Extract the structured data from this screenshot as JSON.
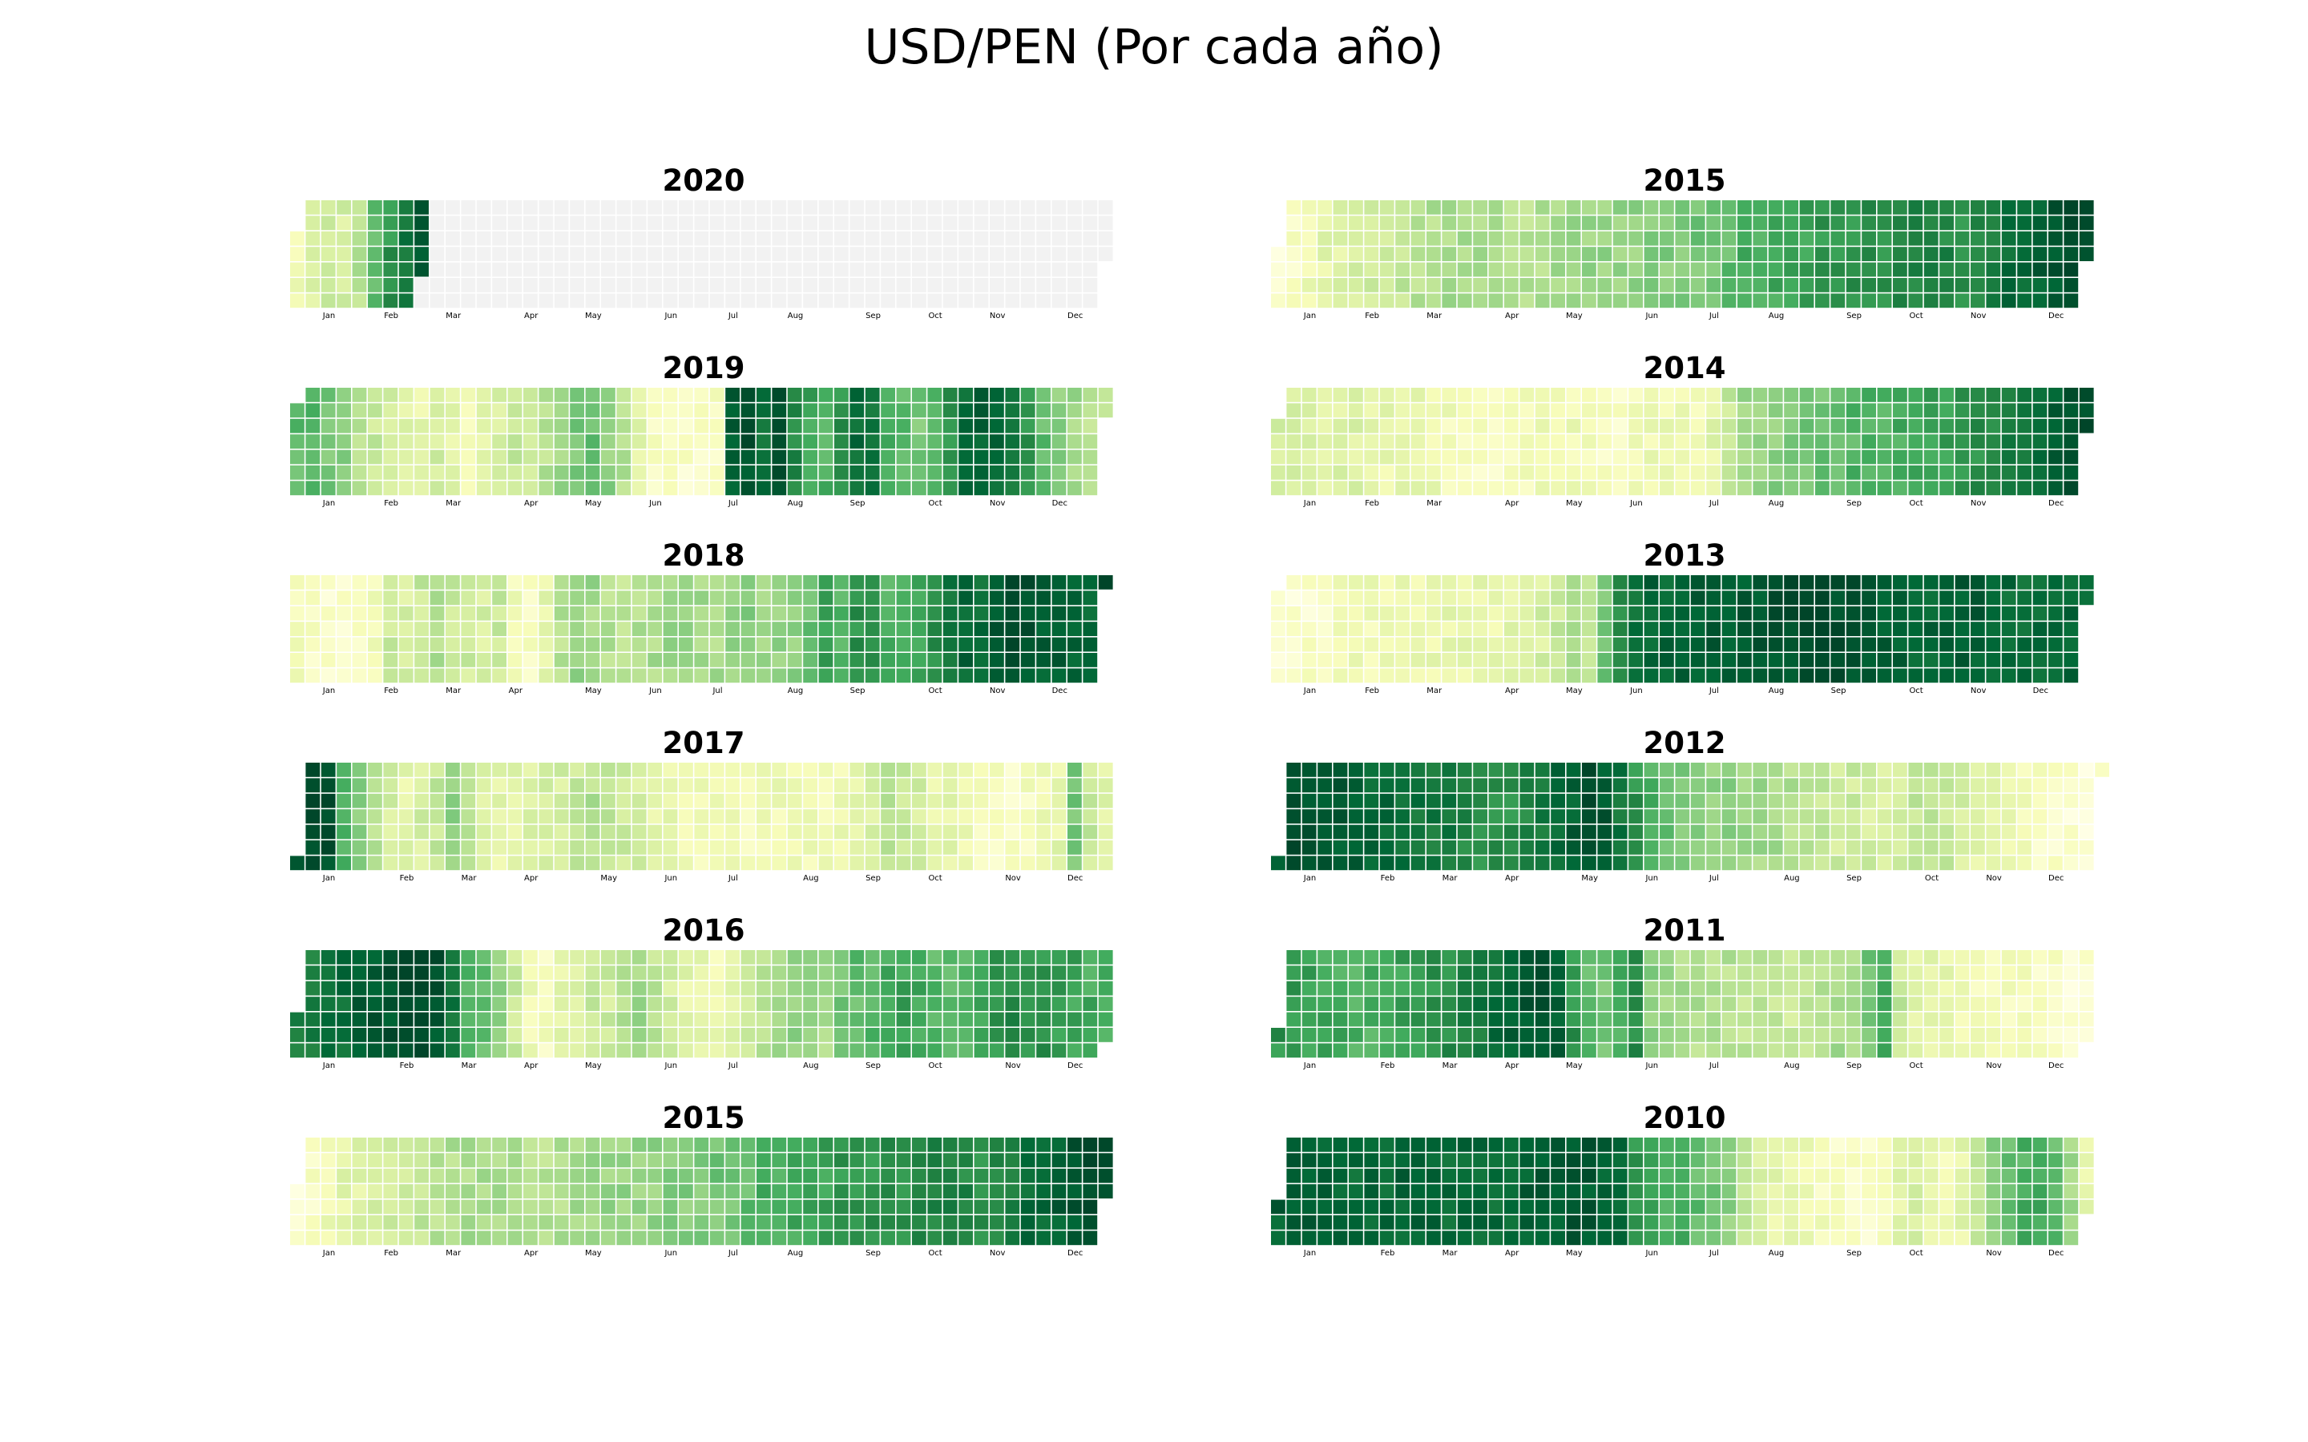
{
  "title": "USD/PEN (Por cada año)",
  "chart_data": {
    "type": "heatmap",
    "layout": "calendar",
    "colormap": "YlGn",
    "no_data_color": "#f2f2f2",
    "month_labels": [
      "Jan",
      "Feb",
      "Mar",
      "Apr",
      "May",
      "Jun",
      "Jul",
      "Aug",
      "Sep",
      "Oct",
      "Nov",
      "Dec"
    ],
    "value_scale": "relative daily USD/PEN level within each year, 0 = lowest (light yellow), 1 = highest (dark green)",
    "panels": [
      {
        "year": "2020",
        "column": "left",
        "end_date": "2020-02-28",
        "weekly_levels": [
          0.15,
          0.25,
          0.3,
          0.25,
          0.35,
          0.55,
          0.7,
          0.8,
          0.95
        ]
      },
      {
        "year": "2015",
        "column": "right",
        "weekly_levels": [
          0.05,
          0.1,
          0.15,
          0.2,
          0.22,
          0.25,
          0.27,
          0.3,
          0.32,
          0.34,
          0.36,
          0.38,
          0.38,
          0.38,
          0.36,
          0.35,
          0.35,
          0.36,
          0.38,
          0.4,
          0.42,
          0.42,
          0.43,
          0.44,
          0.45,
          0.46,
          0.48,
          0.5,
          0.5,
          0.55,
          0.6,
          0.62,
          0.63,
          0.64,
          0.66,
          0.68,
          0.7,
          0.7,
          0.72,
          0.72,
          0.74,
          0.76,
          0.78,
          0.75,
          0.72,
          0.74,
          0.8,
          0.85,
          0.88,
          0.9,
          0.93,
          0.97,
          0.99
        ]
      },
      {
        "year": "2019",
        "column": "left",
        "weekly_levels": [
          0.55,
          0.6,
          0.5,
          0.45,
          0.35,
          0.3,
          0.25,
          0.2,
          0.2,
          0.25,
          0.2,
          0.15,
          0.2,
          0.25,
          0.3,
          0.25,
          0.35,
          0.4,
          0.5,
          0.55,
          0.45,
          0.35,
          0.2,
          0.1,
          0.08,
          0.08,
          0.08,
          0.1,
          0.9,
          0.95,
          0.85,
          0.98,
          0.75,
          0.65,
          0.6,
          0.7,
          0.85,
          0.8,
          0.6,
          0.55,
          0.5,
          0.55,
          0.7,
          0.85,
          0.9,
          0.88,
          0.8,
          0.7,
          0.55,
          0.45,
          0.4,
          0.35,
          0.3
        ]
      },
      {
        "year": "2014",
        "column": "right",
        "weekly_levels": [
          0.25,
          0.25,
          0.22,
          0.22,
          0.22,
          0.22,
          0.2,
          0.18,
          0.18,
          0.18,
          0.16,
          0.14,
          0.12,
          0.1,
          0.08,
          0.1,
          0.12,
          0.15,
          0.16,
          0.15,
          0.12,
          0.1,
          0.1,
          0.12,
          0.15,
          0.16,
          0.15,
          0.14,
          0.2,
          0.3,
          0.4,
          0.42,
          0.45,
          0.48,
          0.5,
          0.52,
          0.55,
          0.58,
          0.6,
          0.6,
          0.62,
          0.63,
          0.65,
          0.66,
          0.7,
          0.72,
          0.75,
          0.78,
          0.8,
          0.85,
          0.9,
          0.94,
          0.97
        ]
      },
      {
        "year": "2018",
        "column": "left",
        "weekly_levels": [
          0.12,
          0.1,
          0.08,
          0.08,
          0.1,
          0.15,
          0.3,
          0.25,
          0.3,
          0.35,
          0.3,
          0.28,
          0.25,
          0.3,
          0.15,
          0.12,
          0.2,
          0.35,
          0.45,
          0.4,
          0.35,
          0.32,
          0.35,
          0.38,
          0.4,
          0.42,
          0.4,
          0.38,
          0.42,
          0.45,
          0.4,
          0.42,
          0.45,
          0.55,
          0.65,
          0.6,
          0.7,
          0.72,
          0.6,
          0.6,
          0.65,
          0.72,
          0.8,
          0.88,
          0.85,
          0.92,
          0.96,
          0.95,
          0.9,
          0.92,
          0.9,
          0.88,
          0.99
        ]
      },
      {
        "year": "2013",
        "column": "right",
        "weekly_levels": [
          0.05,
          0.06,
          0.08,
          0.1,
          0.12,
          0.14,
          0.15,
          0.14,
          0.15,
          0.17,
          0.18,
          0.18,
          0.18,
          0.18,
          0.18,
          0.2,
          0.22,
          0.25,
          0.3,
          0.35,
          0.3,
          0.5,
          0.72,
          0.85,
          0.88,
          0.88,
          0.9,
          0.92,
          0.92,
          0.9,
          0.92,
          0.93,
          0.95,
          0.96,
          0.97,
          0.98,
          0.98,
          0.95,
          0.92,
          0.9,
          0.9,
          0.88,
          0.88,
          0.9,
          0.92,
          0.9,
          0.88,
          0.86,
          0.85,
          0.86,
          0.87,
          0.88,
          0.89
        ]
      },
      {
        "year": "2017",
        "column": "left",
        "weekly_levels": [
          0.99,
          0.98,
          0.95,
          0.6,
          0.45,
          0.35,
          0.25,
          0.2,
          0.25,
          0.3,
          0.45,
          0.35,
          0.25,
          0.2,
          0.2,
          0.22,
          0.25,
          0.25,
          0.3,
          0.35,
          0.3,
          0.28,
          0.25,
          0.2,
          0.18,
          0.15,
          0.15,
          0.14,
          0.13,
          0.14,
          0.15,
          0.16,
          0.18,
          0.16,
          0.15,
          0.15,
          0.2,
          0.25,
          0.35,
          0.3,
          0.25,
          0.2,
          0.2,
          0.15,
          0.12,
          0.1,
          0.1,
          0.12,
          0.15,
          0.2,
          0.5,
          0.3,
          0.2
        ]
      },
      {
        "year": "2012",
        "column": "right",
        "weekly_levels": [
          0.95,
          0.95,
          0.95,
          0.93,
          0.92,
          0.9,
          0.88,
          0.86,
          0.84,
          0.82,
          0.8,
          0.8,
          0.75,
          0.72,
          0.7,
          0.72,
          0.75,
          0.8,
          0.85,
          0.9,
          0.97,
          0.92,
          0.82,
          0.7,
          0.6,
          0.55,
          0.5,
          0.48,
          0.45,
          0.45,
          0.42,
          0.4,
          0.38,
          0.35,
          0.32,
          0.3,
          0.28,
          0.28,
          0.26,
          0.25,
          0.24,
          0.3,
          0.35,
          0.3,
          0.25,
          0.2,
          0.18,
          0.15,
          0.12,
          0.1,
          0.08,
          0.06,
          0.04
        ]
      },
      {
        "year": "2016",
        "column": "left",
        "weekly_levels": [
          0.75,
          0.78,
          0.82,
          0.85,
          0.9,
          0.92,
          0.95,
          0.98,
          0.99,
          0.95,
          0.8,
          0.6,
          0.55,
          0.45,
          0.3,
          0.15,
          0.12,
          0.2,
          0.25,
          0.3,
          0.28,
          0.35,
          0.4,
          0.32,
          0.25,
          0.2,
          0.18,
          0.15,
          0.2,
          0.25,
          0.35,
          0.42,
          0.45,
          0.4,
          0.38,
          0.5,
          0.55,
          0.58,
          0.62,
          0.65,
          0.62,
          0.58,
          0.55,
          0.6,
          0.65,
          0.7,
          0.75,
          0.72,
          0.7,
          0.68,
          0.65,
          0.62,
          0.6
        ]
      },
      {
        "year": "2011",
        "column": "right",
        "weekly_levels": [
          0.7,
          0.68,
          0.66,
          0.64,
          0.62,
          0.6,
          0.6,
          0.62,
          0.65,
          0.68,
          0.7,
          0.72,
          0.75,
          0.8,
          0.85,
          0.9,
          0.92,
          0.95,
          0.9,
          0.7,
          0.55,
          0.5,
          0.6,
          0.72,
          0.45,
          0.4,
          0.38,
          0.36,
          0.35,
          0.34,
          0.33,
          0.32,
          0.3,
          0.3,
          0.32,
          0.35,
          0.38,
          0.4,
          0.5,
          0.6,
          0.3,
          0.22,
          0.2,
          0.18,
          0.15,
          0.14,
          0.13,
          0.12,
          0.11,
          0.1,
          0.08,
          0.06,
          0.05
        ]
      },
      {
        "year": "2015",
        "column": "left",
        "weekly_levels": [
          0.05,
          0.1,
          0.15,
          0.2,
          0.22,
          0.25,
          0.27,
          0.3,
          0.32,
          0.34,
          0.36,
          0.38,
          0.38,
          0.38,
          0.36,
          0.35,
          0.35,
          0.36,
          0.38,
          0.4,
          0.42,
          0.42,
          0.43,
          0.44,
          0.45,
          0.46,
          0.48,
          0.5,
          0.5,
          0.55,
          0.6,
          0.62,
          0.63,
          0.64,
          0.66,
          0.68,
          0.7,
          0.7,
          0.72,
          0.72,
          0.74,
          0.76,
          0.78,
          0.75,
          0.72,
          0.74,
          0.8,
          0.85,
          0.88,
          0.9,
          0.93,
          0.97,
          0.99
        ]
      },
      {
        "year": "2010",
        "column": "right",
        "weekly_levels": [
          0.9,
          0.9,
          0.9,
          0.88,
          0.88,
          0.86,
          0.86,
          0.86,
          0.88,
          0.88,
          0.88,
          0.86,
          0.86,
          0.86,
          0.86,
          0.86,
          0.9,
          0.92,
          0.92,
          0.95,
          0.92,
          0.9,
          0.88,
          0.7,
          0.65,
          0.62,
          0.6,
          0.55,
          0.5,
          0.45,
          0.3,
          0.25,
          0.2,
          0.18,
          0.15,
          0.12,
          0.1,
          0.1,
          0.08,
          0.12,
          0.2,
          0.25,
          0.18,
          0.15,
          0.2,
          0.3,
          0.45,
          0.55,
          0.6,
          0.65,
          0.55,
          0.4,
          0.2
        ]
      }
    ]
  }
}
